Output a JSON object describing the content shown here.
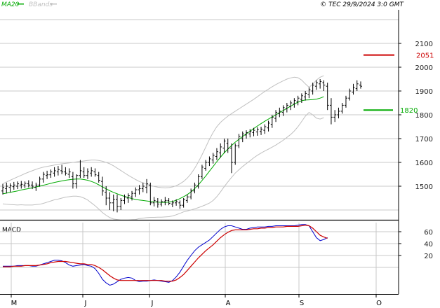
{
  "header": {
    "indicator_ma": "MA20",
    "indicator_bands": "BBands",
    "copyright": "© TEC 29/9/2024 3:0 GMT"
  },
  "colors": {
    "price_bars": "#000000",
    "ma20": "#00aa00",
    "bbands": "#c0c0c0",
    "resistance": "#cc0000",
    "support": "#00aa00",
    "macd_line": "#0000cc",
    "signal_line": "#cc0000",
    "grid": "#c8c8c8"
  },
  "chart_data": [
    {
      "type": "ohlc",
      "title": "",
      "ylim": [
        1400,
        2200
      ],
      "y_ticks": [
        "2100",
        "2000",
        "1900",
        "1800",
        "1700",
        "1600",
        "1500"
      ],
      "x_month_labels": [
        "M",
        "J",
        "J",
        "A",
        "S",
        "O"
      ],
      "levels": [
        {
          "label": "2051",
          "value": 2051,
          "color": "#cc0000"
        },
        {
          "label": "1820",
          "value": 1820,
          "color": "#00aa00"
        }
      ],
      "series": [
        {
          "name": "MA20",
          "values": [
            1468,
            1471,
            1474,
            1477,
            1480,
            1484,
            1487,
            1490,
            1493,
            1497,
            1500,
            1504,
            1508,
            1512,
            1516,
            1519,
            1522,
            1525,
            1527,
            1529,
            1530,
            1530,
            1528,
            1525,
            1520,
            1514,
            1506,
            1497,
            1489,
            1481,
            1474,
            1468,
            1462,
            1457,
            1452,
            1448,
            1444,
            1442,
            1440,
            1438,
            1436,
            1434,
            1433,
            1432,
            1432,
            1433,
            1436,
            1441,
            1448,
            1456,
            1465,
            1476,
            1490,
            1506,
            1524,
            1543,
            1563,
            1583,
            1603,
            1622,
            1640,
            1656,
            1671,
            1685,
            1697,
            1709,
            1720,
            1731,
            1742,
            1753,
            1763,
            1773,
            1782,
            1791,
            1800,
            1809,
            1818,
            1827,
            1836,
            1845,
            1853,
            1859,
            1862,
            1863,
            1864,
            1866,
            1870,
            1876
          ]
        },
        {
          "name": "BBands upper",
          "values": [
            1510,
            1518,
            1525,
            1532,
            1539,
            1546,
            1553,
            1559,
            1565,
            1571,
            1576,
            1580,
            1583,
            1586,
            1589,
            1592,
            1594,
            1596,
            1598,
            1600,
            1602,
            1604,
            1606,
            1608,
            1610,
            1610,
            1608,
            1605,
            1600,
            1594,
            1586,
            1576,
            1566,
            1556,
            1546,
            1537,
            1528,
            1520,
            1514,
            1508,
            1503,
            1499,
            1496,
            1494,
            1493,
            1494,
            1497,
            1502,
            1510,
            1520,
            1534,
            1552,
            1575,
            1602,
            1632,
            1664,
            1697,
            1726,
            1750,
            1768,
            1782,
            1794,
            1805,
            1815,
            1825,
            1835,
            1845,
            1855,
            1865,
            1876,
            1887,
            1898,
            1908,
            1918,
            1927,
            1935,
            1943,
            1950,
            1955,
            1958,
            1956,
            1946,
            1930,
            1916,
            1928,
            1946,
            1958,
            1964
          ]
        },
        {
          "name": "BBands lower",
          "values": [
            1426,
            1424,
            1423,
            1422,
            1421,
            1422,
            1421,
            1421,
            1421,
            1423,
            1424,
            1428,
            1433,
            1438,
            1443,
            1446,
            1450,
            1454,
            1456,
            1458,
            1458,
            1456,
            1450,
            1442,
            1430,
            1418,
            1404,
            1389,
            1378,
            1368,
            1362,
            1360,
            1358,
            1358,
            1358,
            1359,
            1360,
            1364,
            1366,
            1368,
            1369,
            1369,
            1370,
            1370,
            1371,
            1372,
            1375,
            1380,
            1386,
            1392,
            1396,
            1400,
            1405,
            1410,
            1416,
            1422,
            1429,
            1440,
            1456,
            1476,
            1498,
            1518,
            1537,
            1555,
            1569,
            1583,
            1595,
            1607,
            1619,
            1630,
            1639,
            1648,
            1656,
            1664,
            1673,
            1683,
            1693,
            1705,
            1717,
            1732,
            1750,
            1772,
            1794,
            1810,
            1800,
            1786,
            1782,
            1788
          ]
        },
        {
          "name": "Price",
          "values": [
            [
              1480,
              1510,
              1465,
              1495
            ],
            [
              1490,
              1515,
              1470,
              1500
            ],
            [
              1495,
              1512,
              1475,
              1502
            ],
            [
              1498,
              1518,
              1485,
              1505
            ],
            [
              1500,
              1520,
              1488,
              1510
            ],
            [
              1505,
              1522,
              1490,
              1508
            ],
            [
              1505,
              1520,
              1492,
              1512
            ],
            [
              1510,
              1525,
              1495,
              1505
            ],
            [
              1505,
              1520,
              1488,
              1500
            ],
            [
              1495,
              1515,
              1480,
              1505
            ],
            [
              1505,
              1540,
              1498,
              1530
            ],
            [
              1530,
              1560,
              1515,
              1550
            ],
            [
              1545,
              1565,
              1530,
              1548
            ],
            [
              1548,
              1570,
              1535,
              1560
            ],
            [
              1555,
              1580,
              1540,
              1565
            ],
            [
              1560,
              1585,
              1545,
              1570
            ],
            [
              1565,
              1590,
              1550,
              1560
            ],
            [
              1560,
              1580,
              1545,
              1555
            ],
            [
              1550,
              1575,
              1535,
              1560
            ],
            [
              1540,
              1560,
              1490,
              1510
            ],
            [
              1510,
              1550,
              1490,
              1545
            ],
            [
              1545,
              1610,
              1535,
              1565
            ],
            [
              1560,
              1580,
              1535,
              1545
            ],
            [
              1545,
              1575,
              1530,
              1560
            ],
            [
              1555,
              1580,
              1540,
              1565
            ],
            [
              1560,
              1575,
              1540,
              1548
            ],
            [
              1545,
              1560,
              1515,
              1525
            ],
            [
              1520,
              1540,
              1460,
              1480
            ],
            [
              1475,
              1500,
              1420,
              1450
            ],
            [
              1450,
              1475,
              1400,
              1430
            ],
            [
              1430,
              1465,
              1395,
              1445
            ],
            [
              1445,
              1465,
              1390,
              1415
            ],
            [
              1415,
              1450,
              1400,
              1440
            ],
            [
              1440,
              1465,
              1425,
              1455
            ],
            [
              1450,
              1470,
              1430,
              1460
            ],
            [
              1455,
              1480,
              1440,
              1470
            ],
            [
              1470,
              1495,
              1455,
              1485
            ],
            [
              1485,
              1505,
              1465,
              1490
            ],
            [
              1490,
              1515,
              1475,
              1500
            ],
            [
              1495,
              1530,
              1470,
              1510
            ],
            [
              1505,
              1515,
              1420,
              1430
            ],
            [
              1430,
              1455,
              1415,
              1440
            ],
            [
              1435,
              1450,
              1410,
              1425
            ],
            [
              1425,
              1445,
              1415,
              1435
            ],
            [
              1435,
              1455,
              1420,
              1440
            ],
            [
              1440,
              1450,
              1420,
              1428
            ],
            [
              1425,
              1440,
              1412,
              1430
            ],
            [
              1430,
              1445,
              1418,
              1435
            ],
            [
              1430,
              1440,
              1405,
              1420
            ],
            [
              1420,
              1450,
              1410,
              1445
            ],
            [
              1440,
              1465,
              1430,
              1455
            ],
            [
              1455,
              1490,
              1445,
              1480
            ],
            [
              1480,
              1515,
              1470,
              1505
            ],
            [
              1500,
              1550,
              1490,
              1540
            ],
            [
              1540,
              1590,
              1530,
              1580
            ],
            [
              1575,
              1610,
              1565,
              1600
            ],
            [
              1600,
              1625,
              1585,
              1615
            ],
            [
              1610,
              1640,
              1595,
              1630
            ],
            [
              1625,
              1660,
              1610,
              1645
            ],
            [
              1640,
              1680,
              1620,
              1665
            ],
            [
              1660,
              1700,
              1640,
              1690
            ],
            [
              1680,
              1700,
              1640,
              1660
            ],
            [
              1660,
              1680,
              1555,
              1600
            ],
            [
              1600,
              1680,
              1590,
              1670
            ],
            [
              1670,
              1720,
              1660,
              1710
            ],
            [
              1700,
              1730,
              1685,
              1720
            ],
            [
              1715,
              1735,
              1700,
              1725
            ],
            [
              1720,
              1740,
              1705,
              1730
            ],
            [
              1725,
              1745,
              1710,
              1735
            ],
            [
              1728,
              1748,
              1712,
              1738
            ],
            [
              1730,
              1750,
              1715,
              1740
            ],
            [
              1735,
              1760,
              1720,
              1750
            ],
            [
              1745,
              1775,
              1730,
              1765
            ],
            [
              1760,
              1800,
              1745,
              1790
            ],
            [
              1785,
              1820,
              1770,
              1810
            ],
            [
              1805,
              1830,
              1790,
              1815
            ],
            [
              1810,
              1840,
              1795,
              1830
            ],
            [
              1825,
              1850,
              1810,
              1840
            ],
            [
              1835,
              1860,
              1820,
              1850
            ],
            [
              1845,
              1870,
              1830,
              1860
            ],
            [
              1855,
              1880,
              1840,
              1870
            ],
            [
              1865,
              1890,
              1850,
              1880
            ],
            [
              1875,
              1900,
              1860,
              1890
            ],
            [
              1885,
              1915,
              1870,
              1905
            ],
            [
              1900,
              1935,
              1885,
              1925
            ],
            [
              1920,
              1945,
              1905,
              1935
            ],
            [
              1930,
              1950,
              1910,
              1940
            ],
            [
              1935,
              1945,
              1900,
              1925
            ],
            [
              1920,
              1935,
              1820,
              1840
            ],
            [
              1840,
              1870,
              1760,
              1790
            ],
            [
              1790,
              1820,
              1770,
              1800
            ],
            [
              1800,
              1830,
              1785,
              1815
            ],
            [
              1815,
              1850,
              1805,
              1840
            ],
            [
              1840,
              1880,
              1830,
              1870
            ],
            [
              1870,
              1910,
              1860,
              1900
            ],
            [
              1895,
              1930,
              1885,
              1915
            ],
            [
              1910,
              1945,
              1900,
              1930
            ],
            [
              1925,
              1940,
              1910,
              1920
            ]
          ]
        }
      ]
    },
    {
      "type": "line",
      "title": "MACD",
      "ylim": [
        -20,
        80
      ],
      "y_ticks": [
        "60",
        "40",
        "20"
      ],
      "series": [
        {
          "name": "MACD",
          "values": [
            2,
            2,
            2,
            2,
            3,
            3,
            3,
            3,
            2,
            2,
            4,
            6,
            8,
            10,
            12,
            12,
            11,
            8,
            4,
            2,
            3,
            4,
            5,
            3,
            2,
            -2,
            -10,
            -20,
            -26,
            -30,
            -28,
            -24,
            -20,
            -18,
            -17,
            -18,
            -22,
            -24,
            -23,
            -23,
            -22,
            -21,
            -22,
            -23,
            -24,
            -25,
            -22,
            -16,
            -8,
            2,
            12,
            20,
            28,
            34,
            38,
            42,
            46,
            52,
            58,
            64,
            68,
            70,
            70,
            68,
            66,
            64,
            64,
            66,
            67,
            68,
            68,
            68,
            69,
            69,
            70,
            70,
            70,
            70,
            70,
            70,
            71,
            72,
            72,
            70,
            60,
            50,
            45,
            47,
            50
          ]
        },
        {
          "name": "Signal",
          "values": [
            1,
            1,
            1,
            2,
            2,
            2,
            3,
            3,
            3,
            3,
            4,
            5,
            6,
            8,
            9,
            10,
            10,
            10,
            9,
            8,
            7,
            6,
            6,
            5,
            5,
            3,
            0,
            -4,
            -9,
            -14,
            -18,
            -21,
            -22,
            -22,
            -22,
            -22,
            -22,
            -22,
            -22,
            -22,
            -22,
            -22,
            -22,
            -22,
            -23,
            -23,
            -23,
            -21,
            -17,
            -12,
            -5,
            2,
            9,
            16,
            22,
            28,
            33,
            38,
            44,
            50,
            55,
            59,
            62,
            63,
            63,
            63,
            63,
            64,
            65,
            65,
            66,
            66,
            67,
            67,
            68,
            68,
            68,
            69,
            69,
            69,
            69,
            70,
            71,
            70,
            66,
            60,
            54,
            51,
            49
          ]
        }
      ]
    }
  ]
}
